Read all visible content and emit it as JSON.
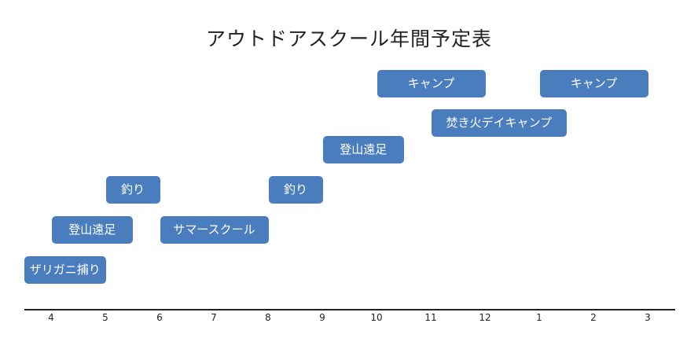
{
  "title": "アウトドアスクール年間予定表",
  "months": [
    "4",
    "5",
    "6",
    "7",
    "8",
    "9",
    "10",
    "11",
    "12",
    "1",
    "2",
    "3"
  ],
  "events": [
    {
      "label": "ザリガニ捕り",
      "month_start": 4,
      "month_end": 5.5,
      "row": 0
    },
    {
      "label": "登山遠足",
      "month_start": 4.5,
      "month_end": 6,
      "row": 1
    },
    {
      "label": "釣り",
      "month_start": 5.5,
      "month_end": 6.5,
      "row": 2
    },
    {
      "label": "サマースクール",
      "month_start": 6.5,
      "month_end": 8.5,
      "row": 1
    },
    {
      "label": "釣り",
      "month_start": 8.5,
      "month_end": 9.5,
      "row": 2
    },
    {
      "label": "登山遠足",
      "month_start": 9.5,
      "month_end": 11,
      "row": 3
    },
    {
      "label": "焚き火デイキャンプ",
      "month_start": 11.5,
      "month_end": 14,
      "row": 4
    },
    {
      "label": "キャンプ",
      "month_start": 10.5,
      "month_end": 12.5,
      "row": 5
    },
    {
      "label": "キャンプ",
      "month_start": 13.5,
      "month_end": 15.5,
      "row": 5
    }
  ]
}
